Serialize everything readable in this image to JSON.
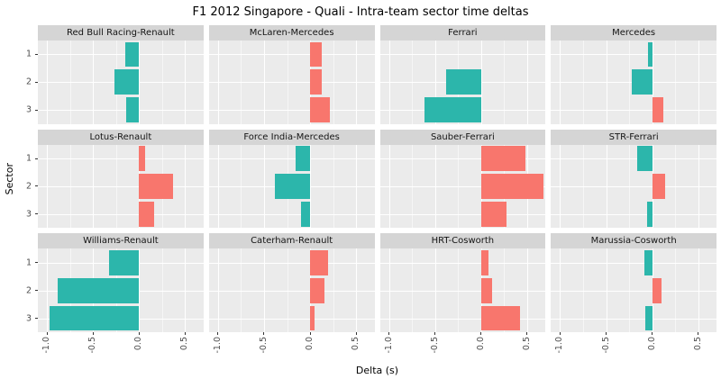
{
  "chart_data": {
    "type": "bar",
    "orientation": "horizontal",
    "title": "F1  2012 Singapore - Quali - Intra-team sector time deltas",
    "xlabel": "Delta (s)",
    "ylabel": "Sector",
    "categories": [
      "1",
      "2",
      "3"
    ],
    "x_ticks": [
      "-1.0",
      "-0.5",
      "0.0",
      "0.5"
    ],
    "x_tick_values": [
      -1.0,
      -0.5,
      0.0,
      0.5
    ],
    "x_minor_ticks": [
      -0.75,
      -0.25,
      0.25
    ],
    "xlim": [
      -1.1,
      0.7
    ],
    "grid": true,
    "legend": "none",
    "colors": {
      "positive": "#F8766D",
      "negative": "#2CB6AB",
      "panel_bg": "#EBEBEB",
      "strip_bg": "#D5D5D5"
    },
    "facets": [
      {
        "team": "Red Bull Racing-Renault",
        "values": [
          -0.15,
          -0.27,
          -0.14
        ]
      },
      {
        "team": "McLaren-Mercedes",
        "values": [
          0.13,
          0.13,
          0.22
        ]
      },
      {
        "team": "Ferrari",
        "values": [
          0.0,
          -0.38,
          -0.62
        ]
      },
      {
        "team": "Mercedes",
        "values": [
          -0.04,
          -0.22,
          0.12
        ]
      },
      {
        "team": "Lotus-Renault",
        "values": [
          0.07,
          0.37,
          0.16
        ]
      },
      {
        "team": "Force India-Mercedes",
        "values": [
          -0.16,
          -0.38,
          -0.1
        ]
      },
      {
        "team": "Sauber-Ferrari",
        "values": [
          0.48,
          0.68,
          0.28
        ]
      },
      {
        "team": "STR-Ferrari",
        "values": [
          -0.16,
          0.14,
          -0.05
        ]
      },
      {
        "team": "Williams-Renault",
        "values": [
          -0.33,
          -0.88,
          -0.97
        ]
      },
      {
        "team": "Caterham-Renault",
        "values": [
          0.2,
          0.16,
          0.05
        ]
      },
      {
        "team": "HRT-Cosworth",
        "values": [
          0.08,
          0.12,
          0.42
        ]
      },
      {
        "team": "Marussia-Cosworth",
        "values": [
          -0.08,
          0.1,
          -0.07
        ]
      }
    ]
  }
}
